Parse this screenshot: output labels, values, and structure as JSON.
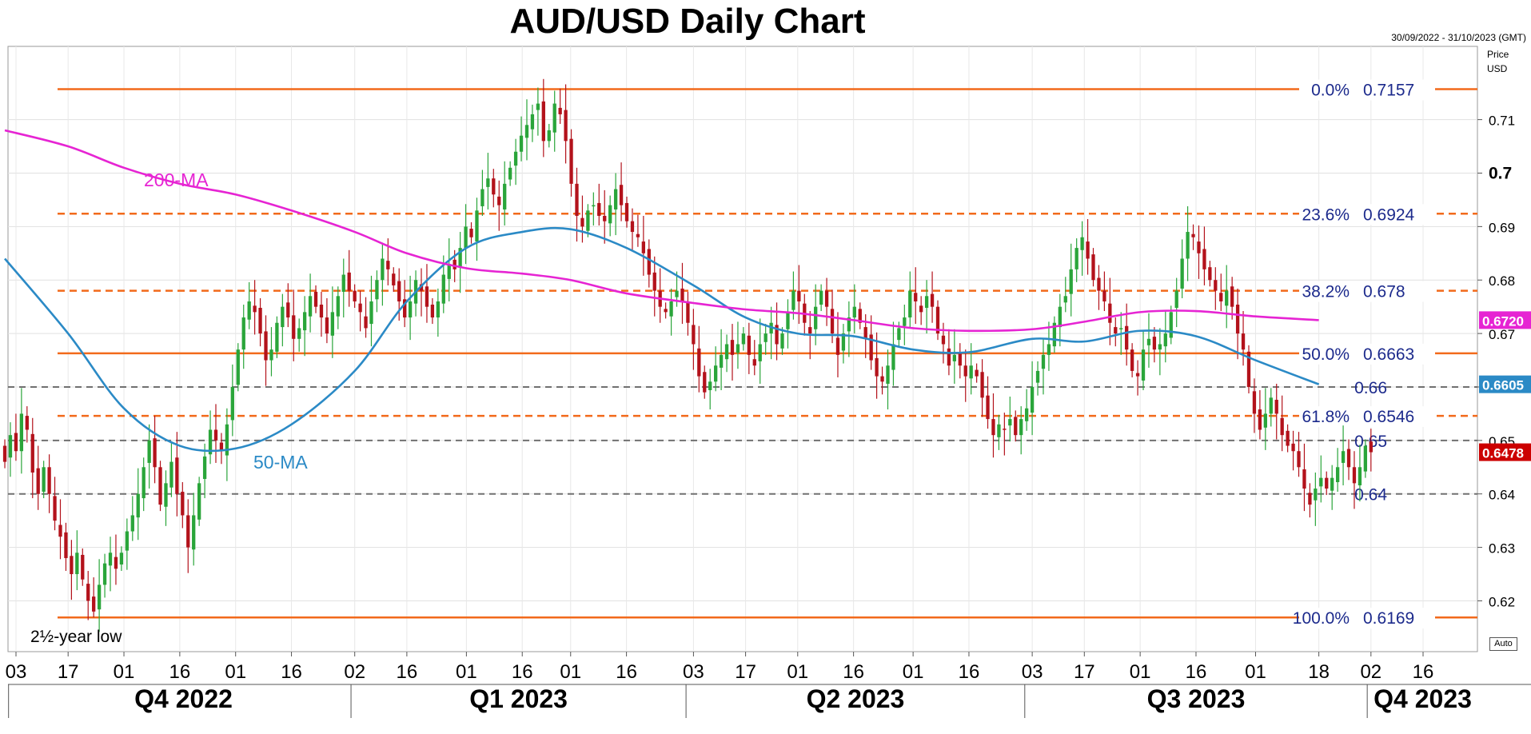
{
  "header": {
    "title": "AUD/USD Daily Chart",
    "date_range": "30/09/2022 - 31/10/2023 (GMT)",
    "axis_unit_line1": "Price",
    "axis_unit_line2": "USD",
    "auto_label": "Auto"
  },
  "colors": {
    "bull": "#2aa53a",
    "bear": "#b3121b",
    "ma50": "#2b8ac6",
    "ma200": "#e624d3",
    "fib_solid": "#f26a1b",
    "fib_dash": "#f26a1b",
    "support": "#707070",
    "label_text": "#1c2a8c",
    "last_price_bg": "#cc0000"
  },
  "chart_data": {
    "type": "candlestick",
    "instrument": "AUD/USD",
    "timeframe": "Daily",
    "ylim": [
      0.6105,
      0.7237
    ],
    "y_ticks": [
      0.62,
      0.63,
      0.64,
      0.65,
      0.66,
      0.67,
      0.68,
      0.69,
      0.7,
      0.71
    ],
    "y_tick_labels": [
      "0.62",
      "0.63",
      "0.64",
      "0.65",
      "",
      "0.67",
      "0.68",
      "0.69",
      "0.7",
      "0.71"
    ],
    "x_tick_labels": [
      "03",
      "17",
      "01",
      "16",
      "01",
      "16",
      "02",
      "16",
      "01",
      "16",
      "01",
      "16",
      "03",
      "17",
      "01",
      "16",
      "01",
      "16",
      "03",
      "17",
      "01",
      "16",
      "01",
      "18",
      "02",
      "16"
    ],
    "quarters": [
      "Q4 2022",
      "Q1 2023",
      "Q2 2023",
      "Q3 2023",
      "Q4 2023"
    ],
    "fibonacci": [
      {
        "level": "0.0%",
        "price": 0.7157,
        "value_label": "0.7157",
        "style": "solid"
      },
      {
        "level": "23.6%",
        "price": 0.6924,
        "value_label": "0.6924",
        "style": "dashed"
      },
      {
        "level": "38.2%",
        "price": 0.678,
        "value_label": "0.678",
        "style": "dashed"
      },
      {
        "level": "50.0%",
        "price": 0.6663,
        "value_label": "0.6663",
        "style": "solid"
      },
      {
        "level": "61.8%",
        "price": 0.6546,
        "value_label": "0.6546",
        "style": "dashed"
      },
      {
        "level": "100.0%",
        "price": 0.6169,
        "value_label": "0.6169",
        "style": "solid"
      }
    ],
    "support_lines": [
      {
        "price": 0.66,
        "label": "0.66"
      },
      {
        "price": 0.65,
        "label": "0.65"
      },
      {
        "price": 0.64,
        "label": "0.64"
      }
    ],
    "moving_averages": [
      {
        "name": "50-MA",
        "last_value_label": "0.6605",
        "points": [
          [
            "2022-09-30",
            0.684
          ],
          [
            "2022-10-17",
            0.67
          ],
          [
            "2022-11-01",
            0.656
          ],
          [
            "2022-11-16",
            0.649
          ],
          [
            "2022-12-01",
            0.6485
          ],
          [
            "2022-12-16",
            0.653
          ],
          [
            "2023-01-02",
            0.663
          ],
          [
            "2023-01-16",
            0.676
          ],
          [
            "2023-02-01",
            0.686
          ],
          [
            "2023-02-16",
            0.689
          ],
          [
            "2023-03-01",
            0.6895
          ],
          [
            "2023-03-16",
            0.686
          ],
          [
            "2023-04-03",
            0.679
          ],
          [
            "2023-04-17",
            0.673
          ],
          [
            "2023-05-01",
            0.67
          ],
          [
            "2023-05-16",
            0.6695
          ],
          [
            "2023-06-01",
            0.667
          ],
          [
            "2023-06-16",
            0.6665
          ],
          [
            "2023-07-03",
            0.669
          ],
          [
            "2023-07-17",
            0.6685
          ],
          [
            "2023-08-01",
            0.6705
          ],
          [
            "2023-08-16",
            0.6695
          ],
          [
            "2023-09-01",
            0.665
          ],
          [
            "2023-09-18",
            0.6605
          ]
        ]
      },
      {
        "name": "200-MA",
        "last_value_label": "0.6720",
        "points": [
          [
            "2022-09-30",
            0.708
          ],
          [
            "2022-10-17",
            0.705
          ],
          [
            "2022-11-01",
            0.701
          ],
          [
            "2022-11-16",
            0.698
          ],
          [
            "2022-12-01",
            0.696
          ],
          [
            "2022-12-16",
            0.693
          ],
          [
            "2023-01-02",
            0.689
          ],
          [
            "2023-01-16",
            0.685
          ],
          [
            "2023-02-01",
            0.6822
          ],
          [
            "2023-02-16",
            0.6812
          ],
          [
            "2023-03-01",
            0.68
          ],
          [
            "2023-03-16",
            0.6775
          ],
          [
            "2023-04-03",
            0.6757
          ],
          [
            "2023-04-17",
            0.6745
          ],
          [
            "2023-05-01",
            0.6738
          ],
          [
            "2023-05-16",
            0.6725
          ],
          [
            "2023-06-01",
            0.671
          ],
          [
            "2023-06-16",
            0.6705
          ],
          [
            "2023-07-03",
            0.6708
          ],
          [
            "2023-07-17",
            0.6722
          ],
          [
            "2023-08-01",
            0.674
          ],
          [
            "2023-08-16",
            0.6742
          ],
          [
            "2023-09-01",
            0.6732
          ],
          [
            "2023-09-18",
            0.6725
          ]
        ]
      }
    ],
    "last_price_label": "0.6478",
    "annotations": [
      "2½-year low",
      "200-MA",
      "50-MA"
    ],
    "path": [
      0.646,
      0.651,
      0.648,
      0.655,
      0.652,
      0.644,
      0.64,
      0.645,
      0.64,
      0.635,
      0.632,
      0.628,
      0.625,
      0.629,
      0.624,
      0.62,
      0.618,
      0.623,
      0.627,
      0.629,
      0.626,
      0.629,
      0.633,
      0.636,
      0.64,
      0.645,
      0.65,
      0.645,
      0.638,
      0.642,
      0.646,
      0.64,
      0.636,
      0.63,
      0.636,
      0.642,
      0.647,
      0.652,
      0.65,
      0.648,
      0.653,
      0.66,
      0.667,
      0.673,
      0.676,
      0.674,
      0.67,
      0.665,
      0.667,
      0.672,
      0.675,
      0.673,
      0.669,
      0.671,
      0.674,
      0.677,
      0.675,
      0.673,
      0.67,
      0.674,
      0.677,
      0.681,
      0.678,
      0.676,
      0.674,
      0.671,
      0.676,
      0.68,
      0.684,
      0.682,
      0.679,
      0.676,
      0.673,
      0.676,
      0.68,
      0.678,
      0.675,
      0.673,
      0.676,
      0.681,
      0.683,
      0.682,
      0.686,
      0.69,
      0.688,
      0.693,
      0.697,
      0.699,
      0.696,
      0.694,
      0.698,
      0.701,
      0.704,
      0.707,
      0.709,
      0.711,
      0.713,
      0.706,
      0.708,
      0.713,
      0.711,
      0.706,
      0.698,
      0.692,
      0.69,
      0.693,
      0.694,
      0.692,
      0.691,
      0.694,
      0.697,
      0.694,
      0.691,
      0.689,
      0.688,
      0.685,
      0.681,
      0.678,
      0.675,
      0.674,
      0.676,
      0.678,
      0.676,
      0.672,
      0.668,
      0.662,
      0.659,
      0.661,
      0.664,
      0.666,
      0.668,
      0.666,
      0.668,
      0.67,
      0.666,
      0.664,
      0.668,
      0.67,
      0.672,
      0.668,
      0.67,
      0.674,
      0.678,
      0.676,
      0.672,
      0.67,
      0.675,
      0.678,
      0.675,
      0.67,
      0.666,
      0.67,
      0.673,
      0.675,
      0.672,
      0.669,
      0.665,
      0.662,
      0.661,
      0.664,
      0.668,
      0.671,
      0.673,
      0.678,
      0.676,
      0.674,
      0.677,
      0.675,
      0.67,
      0.668,
      0.664,
      0.666,
      0.664,
      0.662,
      0.664,
      0.662,
      0.658,
      0.654,
      0.651,
      0.653,
      0.652,
      0.654,
      0.651,
      0.654,
      0.656,
      0.66,
      0.663,
      0.666,
      0.668,
      0.672,
      0.675,
      0.677,
      0.682,
      0.686,
      0.688,
      0.684,
      0.68,
      0.678,
      0.676,
      0.672,
      0.67,
      0.671,
      0.667,
      0.663,
      0.662,
      0.667,
      0.669,
      0.667,
      0.668,
      0.67,
      0.674,
      0.678,
      0.684,
      0.689,
      0.688,
      0.685,
      0.682,
      0.68,
      0.678,
      0.676,
      0.678,
      0.675,
      0.67,
      0.667,
      0.66,
      0.655,
      0.652,
      0.655,
      0.658,
      0.655,
      0.651,
      0.649,
      0.648,
      0.645,
      0.641,
      0.638,
      0.641,
      0.643,
      0.641,
      0.643,
      0.645,
      0.648,
      0.645,
      0.642,
      0.645,
      0.649,
      0.6478
    ]
  }
}
